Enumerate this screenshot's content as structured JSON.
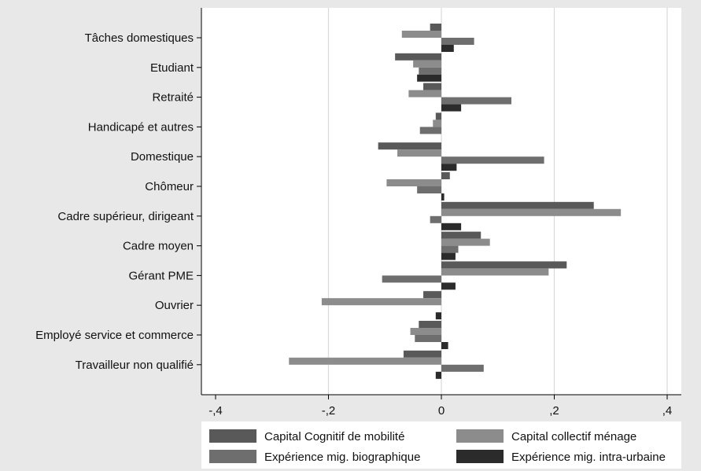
{
  "chart_data": {
    "type": "bar",
    "orientation": "horizontal",
    "categories": [
      "Tâches domestiques",
      "Etudiant",
      "Retraité",
      "Handicapé et autres",
      "Domestique",
      "Chômeur",
      "Cadre supérieur, dirigeant",
      "Cadre moyen",
      "Gérant PME",
      "Ouvrier",
      "Employé service et commerce",
      "Travailleur non qualifié"
    ],
    "series": [
      {
        "name": "Capital Cognitif de mobilité",
        "color": "#595959",
        "values": [
          -0.02,
          -0.082,
          -0.032,
          -0.01,
          -0.112,
          0.015,
          0.27,
          0.07,
          0.222,
          -0.032,
          -0.04,
          -0.067
        ]
      },
      {
        "name": "Capital collectif ménage",
        "color": "#8c8c8c",
        "values": [
          -0.07,
          -0.05,
          -0.058,
          -0.015,
          -0.078,
          -0.097,
          0.318,
          0.086,
          0.19,
          -0.212,
          -0.055,
          -0.27
        ]
      },
      {
        "name": "Expérience mig. biographique",
        "color": "#6e6e6e",
        "values": [
          0.058,
          -0.04,
          0.124,
          -0.038,
          0.182,
          -0.043,
          -0.02,
          0.03,
          -0.105,
          0.0,
          -0.047,
          0.075
        ]
      },
      {
        "name": "Expérience mig. intra-urbaine",
        "color": "#2b2b2b",
        "values": [
          0.022,
          -0.043,
          0.035,
          0.0,
          0.027,
          0.005,
          0.035,
          0.025,
          0.025,
          -0.01,
          0.012,
          -0.01
        ]
      }
    ],
    "xlim": [
      -0.4,
      0.4
    ],
    "xticks": [
      -0.4,
      -0.2,
      0,
      0.2,
      0.4
    ],
    "xtick_labels": [
      "-,4",
      "-,2",
      "0",
      ",2",
      ",4"
    ],
    "grid": true,
    "legend_position": "bottom",
    "title": "",
    "xlabel": "",
    "ylabel": ""
  }
}
